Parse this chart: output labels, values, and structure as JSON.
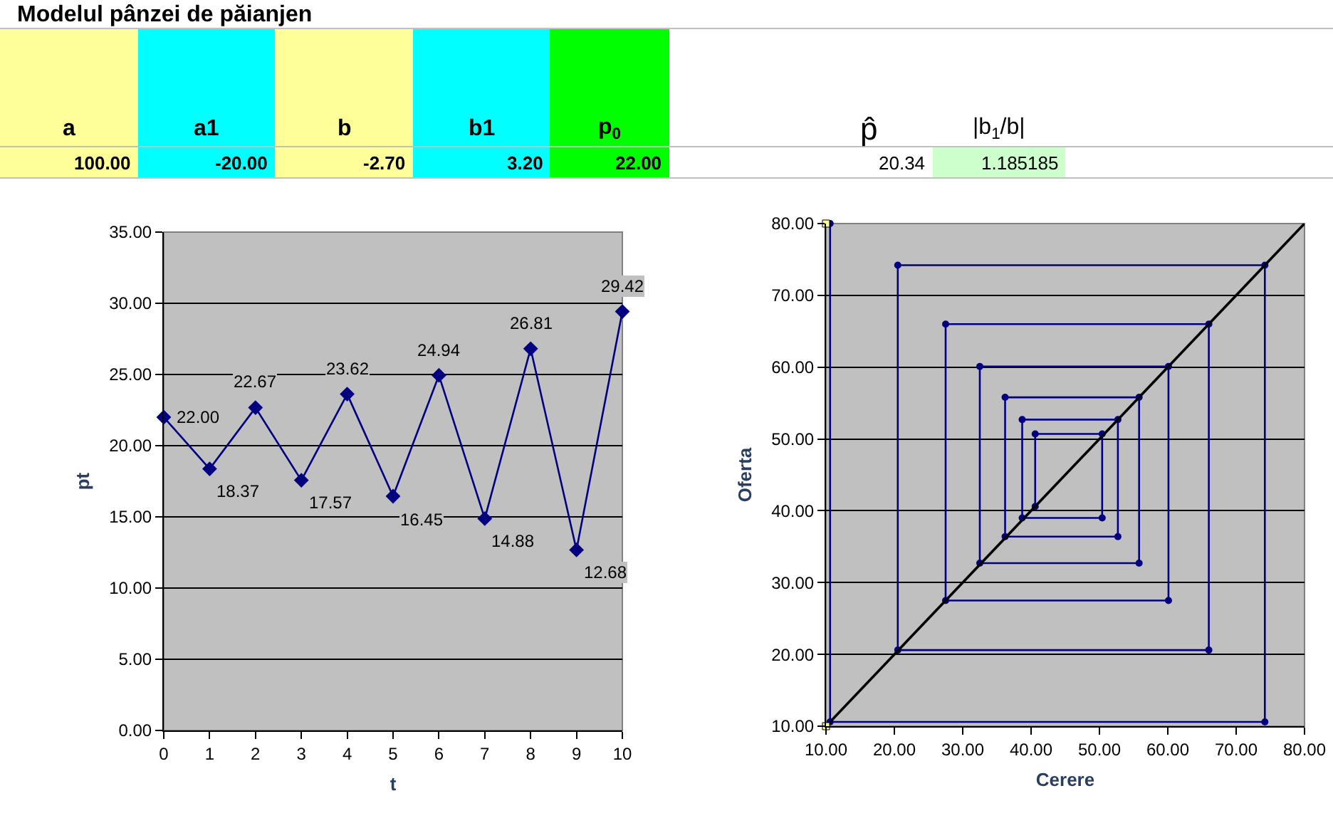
{
  "chart_data": [
    {
      "type": "other",
      "annotations": [
        "Modelul pânzei de păianjen",
        "a",
        "a1",
        "b",
        "b1",
        "p$_{0}$",
        "100.00",
        "-20.00",
        "-2.70",
        "3.20",
        "22.00",
        "p̂",
        "|b$_{1}$/b|",
        "20.34",
        "1.185185"
      ]
    },
    {
      "type": "line",
      "xlabel": "t",
      "ylabel": "pt",
      "x": [
        0,
        1,
        2,
        3,
        4,
        5,
        6,
        7,
        8,
        9,
        10
      ],
      "series": [
        {
          "color": "#000080",
          "values": [
            22.0,
            18.37,
            22.67,
            17.57,
            23.62,
            16.45,
            24.94,
            14.88,
            26.81,
            12.68,
            29.42
          ],
          "value_labels": [
            "22.00",
            "18.37",
            "22.67",
            "17.57",
            "23.62",
            "16.45",
            "24.94",
            "14.88",
            "26.81",
            "12.68",
            "29.42"
          ]
        }
      ],
      "xlim": [
        0,
        10
      ],
      "xticks": [
        0,
        1,
        2,
        3,
        4,
        5,
        6,
        7,
        8,
        9,
        10
      ],
      "ylim": [
        0,
        35
      ],
      "yticks": [
        {
          "value": 0,
          "label": "0.00"
        },
        {
          "value": 5,
          "label": "5.00"
        },
        {
          "value": 10,
          "label": "10.00"
        },
        {
          "value": 15,
          "label": "15.00"
        },
        {
          "value": 20,
          "label": "20.00"
        },
        {
          "value": 25,
          "label": "25.00"
        },
        {
          "value": 30,
          "label": "30.00"
        },
        {
          "value": 35,
          "label": "35.00"
        }
      ],
      "grid": "y",
      "marker": "diamond",
      "line_style": "solid"
    },
    {
      "type": "line",
      "xlabel": "Cerere",
      "ylabel": "Oferta",
      "series": [
        {
          "color": "#000080",
          "marker": "circle",
          "x": [
            40.6,
            40.6,
            50.4,
            50.4,
            38.7,
            38.7,
            52.7,
            52.7,
            36.2,
            36.2,
            55.8,
            55.8,
            32.5,
            32.5,
            60.1,
            60.1,
            27.5,
            27.5,
            66.0,
            66.0,
            20.5,
            20.5,
            74.2,
            74.2,
            10.6,
            10.6
          ],
          "values": [
            40.6,
            50.7,
            50.7,
            39.0,
            39.0,
            52.7,
            52.7,
            36.4,
            36.4,
            55.8,
            55.8,
            32.7,
            32.7,
            60.1,
            60.1,
            27.5,
            27.5,
            66.0,
            66.0,
            20.6,
            20.6,
            74.2,
            74.2,
            10.6,
            10.6,
            80.0
          ]
        },
        {
          "color": "#000000",
          "marker": "none",
          "x": [
            10,
            80
          ],
          "values": [
            10,
            80
          ]
        },
        {
          "type": "scatter",
          "color": "#ffff99",
          "marker": "square",
          "x": [
            10,
            10
          ],
          "values": [
            10,
            80
          ]
        }
      ],
      "xlim": [
        10,
        80
      ],
      "xticks": [
        {
          "value": 10,
          "label": "10.00"
        },
        {
          "value": 20,
          "label": "20.00"
        },
        {
          "value": 30,
          "label": "30.00"
        },
        {
          "value": 40,
          "label": "40.00"
        },
        {
          "value": 50,
          "label": "50.00"
        },
        {
          "value": 60,
          "label": "60.00"
        },
        {
          "value": 70,
          "label": "70.00"
        },
        {
          "value": 80,
          "label": "80.00"
        }
      ],
      "ylim": [
        10,
        80
      ],
      "yticks": [
        {
          "value": 10,
          "label": "10.00"
        },
        {
          "value": 20,
          "label": "20.00"
        },
        {
          "value": 30,
          "label": "30.00"
        },
        {
          "value": 40,
          "label": "40.00"
        },
        {
          "value": 50,
          "label": "50.00"
        },
        {
          "value": 60,
          "label": "60.00"
        },
        {
          "value": 70,
          "label": "70.00"
        },
        {
          "value": 80,
          "label": "80.00"
        }
      ],
      "grid": "y",
      "line_style": "solid"
    }
  ]
}
